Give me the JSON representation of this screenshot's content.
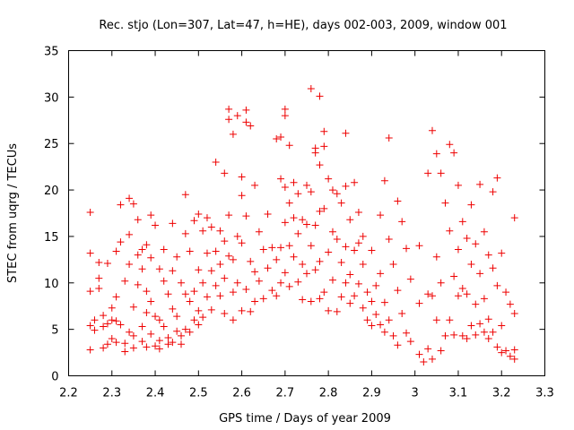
{
  "chart_data": {
    "type": "scatter",
    "title": "Rec. stjo (Lon=307, Lat=47, h=HE), days 002-003, 2009, window 001",
    "xlabel": "GPS time / Days of year 2009",
    "ylabel": "STEC from uqrg / TECUs",
    "xlim": [
      2.2,
      3.3
    ],
    "ylim": [
      0,
      35
    ],
    "xticks": [
      "2.2",
      "2.3",
      "2.4",
      "2.5",
      "2.6",
      "2.7",
      "2.8",
      "2.9",
      "3",
      "3.1",
      "3.2",
      "3.3"
    ],
    "yticks": [
      "0",
      "5",
      "10",
      "15",
      "20",
      "25",
      "30",
      "35"
    ],
    "marker": "plus",
    "color": "#ee0000",
    "points": [
      [
        2.25,
        17.6
      ],
      [
        2.25,
        13.2
      ],
      [
        2.25,
        9.1
      ],
      [
        2.25,
        5.4
      ],
      [
        2.25,
        2.8
      ],
      [
        2.26,
        6.0
      ],
      [
        2.26,
        4.9
      ],
      [
        2.27,
        12.2
      ],
      [
        2.27,
        10.5
      ],
      [
        2.27,
        9.4
      ],
      [
        2.28,
        5.3
      ],
      [
        2.28,
        3.0
      ],
      [
        2.28,
        6.5
      ],
      [
        2.29,
        12.1
      ],
      [
        2.29,
        5.6
      ],
      [
        2.29,
        3.4
      ],
      [
        2.3,
        7.3
      ],
      [
        2.3,
        6.0
      ],
      [
        2.3,
        4.0
      ],
      [
        2.31,
        8.5
      ],
      [
        2.31,
        5.9
      ],
      [
        2.31,
        3.6
      ],
      [
        2.31,
        13.4
      ],
      [
        2.32,
        14.4
      ],
      [
        2.32,
        18.4
      ],
      [
        2.32,
        5.5
      ],
      [
        2.33,
        10.2
      ],
      [
        2.33,
        3.5
      ],
      [
        2.33,
        2.6
      ],
      [
        2.34,
        19.1
      ],
      [
        2.34,
        15.2
      ],
      [
        2.34,
        12.0
      ],
      [
        2.34,
        4.7
      ],
      [
        2.35,
        18.5
      ],
      [
        2.35,
        7.4
      ],
      [
        2.35,
        4.3
      ],
      [
        2.35,
        3.0
      ],
      [
        2.36,
        16.8
      ],
      [
        2.36,
        13.0
      ],
      [
        2.36,
        9.8
      ],
      [
        2.37,
        13.6
      ],
      [
        2.37,
        11.5
      ],
      [
        2.37,
        5.3
      ],
      [
        2.37,
        3.7
      ],
      [
        2.38,
        14.1
      ],
      [
        2.38,
        9.1
      ],
      [
        2.38,
        6.8
      ],
      [
        2.38,
        3.1
      ],
      [
        2.39,
        17.3
      ],
      [
        2.39,
        12.7
      ],
      [
        2.39,
        8.0
      ],
      [
        2.39,
        4.5
      ],
      [
        2.4,
        16.2
      ],
      [
        2.4,
        6.4
      ],
      [
        2.4,
        3.2
      ],
      [
        2.41,
        11.5
      ],
      [
        2.41,
        6.0
      ],
      [
        2.41,
        3.8
      ],
      [
        2.41,
        2.9
      ],
      [
        2.42,
        13.6
      ],
      [
        2.42,
        10.2
      ],
      [
        2.42,
        5.3
      ],
      [
        2.43,
        8.8
      ],
      [
        2.43,
        4.1
      ],
      [
        2.43,
        3.4
      ],
      [
        2.44,
        16.4
      ],
      [
        2.44,
        11.3
      ],
      [
        2.44,
        7.2
      ],
      [
        2.44,
        3.6
      ],
      [
        2.45,
        12.8
      ],
      [
        2.45,
        6.4
      ],
      [
        2.45,
        4.8
      ],
      [
        2.46,
        10.0
      ],
      [
        2.46,
        4.3
      ],
      [
        2.46,
        3.4
      ],
      [
        2.47,
        19.5
      ],
      [
        2.47,
        15.3
      ],
      [
        2.47,
        8.8
      ],
      [
        2.47,
        5.0
      ],
      [
        2.48,
        13.4
      ],
      [
        2.48,
        8.0
      ],
      [
        2.48,
        4.7
      ],
      [
        2.49,
        16.7
      ],
      [
        2.49,
        9.1
      ],
      [
        2.49,
        6.0
      ],
      [
        2.5,
        17.4
      ],
      [
        2.5,
        11.4
      ],
      [
        2.5,
        7.0
      ],
      [
        2.5,
        5.5
      ],
      [
        2.51,
        15.6
      ],
      [
        2.51,
        10.0
      ],
      [
        2.51,
        6.3
      ],
      [
        2.52,
        17.0
      ],
      [
        2.52,
        13.2
      ],
      [
        2.52,
        8.5
      ],
      [
        2.53,
        16.0
      ],
      [
        2.53,
        11.3
      ],
      [
        2.53,
        7.1
      ],
      [
        2.54,
        23.0
      ],
      [
        2.54,
        13.4
      ],
      [
        2.54,
        9.7
      ],
      [
        2.55,
        15.6
      ],
      [
        2.55,
        12.0
      ],
      [
        2.55,
        8.6
      ],
      [
        2.56,
        21.8
      ],
      [
        2.56,
        14.5
      ],
      [
        2.56,
        10.5
      ],
      [
        2.56,
        6.7
      ],
      [
        2.57,
        28.7
      ],
      [
        2.57,
        27.6
      ],
      [
        2.57,
        17.3
      ],
      [
        2.57,
        12.9
      ],
      [
        2.58,
        26.0
      ],
      [
        2.58,
        12.5
      ],
      [
        2.58,
        9.0
      ],
      [
        2.58,
        6.0
      ],
      [
        2.59,
        28.0
      ],
      [
        2.59,
        15.0
      ],
      [
        2.59,
        10.0
      ],
      [
        2.6,
        21.4
      ],
      [
        2.6,
        19.4
      ],
      [
        2.6,
        14.3
      ],
      [
        2.6,
        7.0
      ],
      [
        2.61,
        28.6
      ],
      [
        2.61,
        27.3
      ],
      [
        2.61,
        17.2
      ],
      [
        2.61,
        9.3
      ],
      [
        2.62,
        26.9
      ],
      [
        2.62,
        12.3
      ],
      [
        2.62,
        6.9
      ],
      [
        2.63,
        20.5
      ],
      [
        2.63,
        11.2
      ],
      [
        2.63,
        8.0
      ],
      [
        2.64,
        15.5
      ],
      [
        2.64,
        10.2
      ],
      [
        2.65,
        13.6
      ],
      [
        2.65,
        8.3
      ],
      [
        2.66,
        17.4
      ],
      [
        2.66,
        11.6
      ],
      [
        2.67,
        13.8
      ],
      [
        2.67,
        9.2
      ],
      [
        2.68,
        25.5
      ],
      [
        2.68,
        12.5
      ],
      [
        2.68,
        8.6
      ],
      [
        2.69,
        25.7
      ],
      [
        2.69,
        21.2
      ],
      [
        2.69,
        13.8
      ],
      [
        2.69,
        10.0
      ],
      [
        2.7,
        28.7
      ],
      [
        2.7,
        28.0
      ],
      [
        2.7,
        20.3
      ],
      [
        2.7,
        16.5
      ],
      [
        2.7,
        11.1
      ],
      [
        2.71,
        24.8
      ],
      [
        2.71,
        18.6
      ],
      [
        2.71,
        14.0
      ],
      [
        2.71,
        9.6
      ],
      [
        2.72,
        20.8
      ],
      [
        2.72,
        17.0
      ],
      [
        2.72,
        12.8
      ],
      [
        2.73,
        19.6
      ],
      [
        2.73,
        15.3
      ],
      [
        2.73,
        10.1
      ],
      [
        2.74,
        16.8
      ],
      [
        2.74,
        12.0
      ],
      [
        2.74,
        8.2
      ],
      [
        2.75,
        20.5
      ],
      [
        2.75,
        16.3
      ],
      [
        2.75,
        11.0
      ],
      [
        2.76,
        30.9
      ],
      [
        2.76,
        19.8
      ],
      [
        2.76,
        14.0
      ],
      [
        2.76,
        8.0
      ],
      [
        2.77,
        24.5
      ],
      [
        2.77,
        24.0
      ],
      [
        2.77,
        16.2
      ],
      [
        2.77,
        11.4
      ],
      [
        2.78,
        30.1
      ],
      [
        2.78,
        22.7
      ],
      [
        2.78,
        17.7
      ],
      [
        2.78,
        12.3
      ],
      [
        2.78,
        8.3
      ],
      [
        2.79,
        26.3
      ],
      [
        2.79,
        24.7
      ],
      [
        2.79,
        18.0
      ],
      [
        2.79,
        9.0
      ],
      [
        2.8,
        21.2
      ],
      [
        2.8,
        13.3
      ],
      [
        2.8,
        7.0
      ],
      [
        2.81,
        20.0
      ],
      [
        2.81,
        15.5
      ],
      [
        2.81,
        10.3
      ],
      [
        2.82,
        19.6
      ],
      [
        2.82,
        14.7
      ],
      [
        2.82,
        6.9
      ],
      [
        2.83,
        18.6
      ],
      [
        2.83,
        12.2
      ],
      [
        2.83,
        8.5
      ],
      [
        2.84,
        26.1
      ],
      [
        2.84,
        20.4
      ],
      [
        2.84,
        13.9
      ],
      [
        2.84,
        10.0
      ],
      [
        2.85,
        16.8
      ],
      [
        2.85,
        10.9
      ],
      [
        2.85,
        7.8
      ],
      [
        2.86,
        20.8
      ],
      [
        2.86,
        13.5
      ],
      [
        2.86,
        8.6
      ],
      [
        2.87,
        17.6
      ],
      [
        2.87,
        14.3
      ],
      [
        2.87,
        9.9
      ],
      [
        2.88,
        15.0
      ],
      [
        2.88,
        12.0
      ],
      [
        2.88,
        7.3
      ],
      [
        2.89,
        9.0
      ],
      [
        2.89,
        6.0
      ],
      [
        2.9,
        13.5
      ],
      [
        2.9,
        8.0
      ],
      [
        2.9,
        5.4
      ],
      [
        2.91,
        9.7
      ],
      [
        2.91,
        6.6
      ],
      [
        2.92,
        17.3
      ],
      [
        2.92,
        11.0
      ],
      [
        2.92,
        5.5
      ],
      [
        2.93,
        21.0
      ],
      [
        2.93,
        7.9
      ],
      [
        2.93,
        4.7
      ],
      [
        2.94,
        25.6
      ],
      [
        2.94,
        14.7
      ],
      [
        2.94,
        6.0
      ],
      [
        2.95,
        12.0
      ],
      [
        2.95,
        4.3
      ],
      [
        2.96,
        18.8
      ],
      [
        2.96,
        9.2
      ],
      [
        2.96,
        3.3
      ],
      [
        2.97,
        16.6
      ],
      [
        2.97,
        6.7
      ],
      [
        2.98,
        13.7
      ],
      [
        2.98,
        4.6
      ],
      [
        2.99,
        10.4
      ],
      [
        2.99,
        3.7
      ],
      [
        3.01,
        14.0
      ],
      [
        3.01,
        7.8
      ],
      [
        3.01,
        2.3
      ],
      [
        3.02,
        1.5
      ],
      [
        3.03,
        21.8
      ],
      [
        3.03,
        8.8
      ],
      [
        3.03,
        2.9
      ],
      [
        3.04,
        26.4
      ],
      [
        3.04,
        8.6
      ],
      [
        3.04,
        1.8
      ],
      [
        3.05,
        23.9
      ],
      [
        3.05,
        12.8
      ],
      [
        3.05,
        6.0
      ],
      [
        3.06,
        21.8
      ],
      [
        3.06,
        10.0
      ],
      [
        3.06,
        2.7
      ],
      [
        3.07,
        18.6
      ],
      [
        3.07,
        4.3
      ],
      [
        3.08,
        24.9
      ],
      [
        3.08,
        15.6
      ],
      [
        3.08,
        6.0
      ],
      [
        3.09,
        24.0
      ],
      [
        3.09,
        10.7
      ],
      [
        3.09,
        4.4
      ],
      [
        3.1,
        20.5
      ],
      [
        3.1,
        13.6
      ],
      [
        3.1,
        8.6
      ],
      [
        3.11,
        16.6
      ],
      [
        3.11,
        9.4
      ],
      [
        3.11,
        4.3
      ],
      [
        3.12,
        14.8
      ],
      [
        3.12,
        8.8
      ],
      [
        3.12,
        4.0
      ],
      [
        3.13,
        18.4
      ],
      [
        3.13,
        12.0
      ],
      [
        3.13,
        5.4
      ],
      [
        3.14,
        14.2
      ],
      [
        3.14,
        7.7
      ],
      [
        3.14,
        4.4
      ],
      [
        3.15,
        20.6
      ],
      [
        3.15,
        11.0
      ],
      [
        3.15,
        5.6
      ],
      [
        3.16,
        15.5
      ],
      [
        3.16,
        8.3
      ],
      [
        3.16,
        4.7
      ],
      [
        3.17,
        13.0
      ],
      [
        3.17,
        6.1
      ],
      [
        3.17,
        4.0
      ],
      [
        3.18,
        19.8
      ],
      [
        3.18,
        11.6
      ],
      [
        3.18,
        4.7
      ],
      [
        3.19,
        21.3
      ],
      [
        3.19,
        9.7
      ],
      [
        3.19,
        3.1
      ],
      [
        3.2,
        13.2
      ],
      [
        3.2,
        5.4
      ],
      [
        3.2,
        2.5
      ],
      [
        3.21,
        9.0
      ],
      [
        3.21,
        2.7
      ],
      [
        3.22,
        7.7
      ],
      [
        3.22,
        2.1
      ],
      [
        3.23,
        17.0
      ],
      [
        3.23,
        6.7
      ],
      [
        3.23,
        2.8
      ],
      [
        3.23,
        1.8
      ]
    ]
  }
}
